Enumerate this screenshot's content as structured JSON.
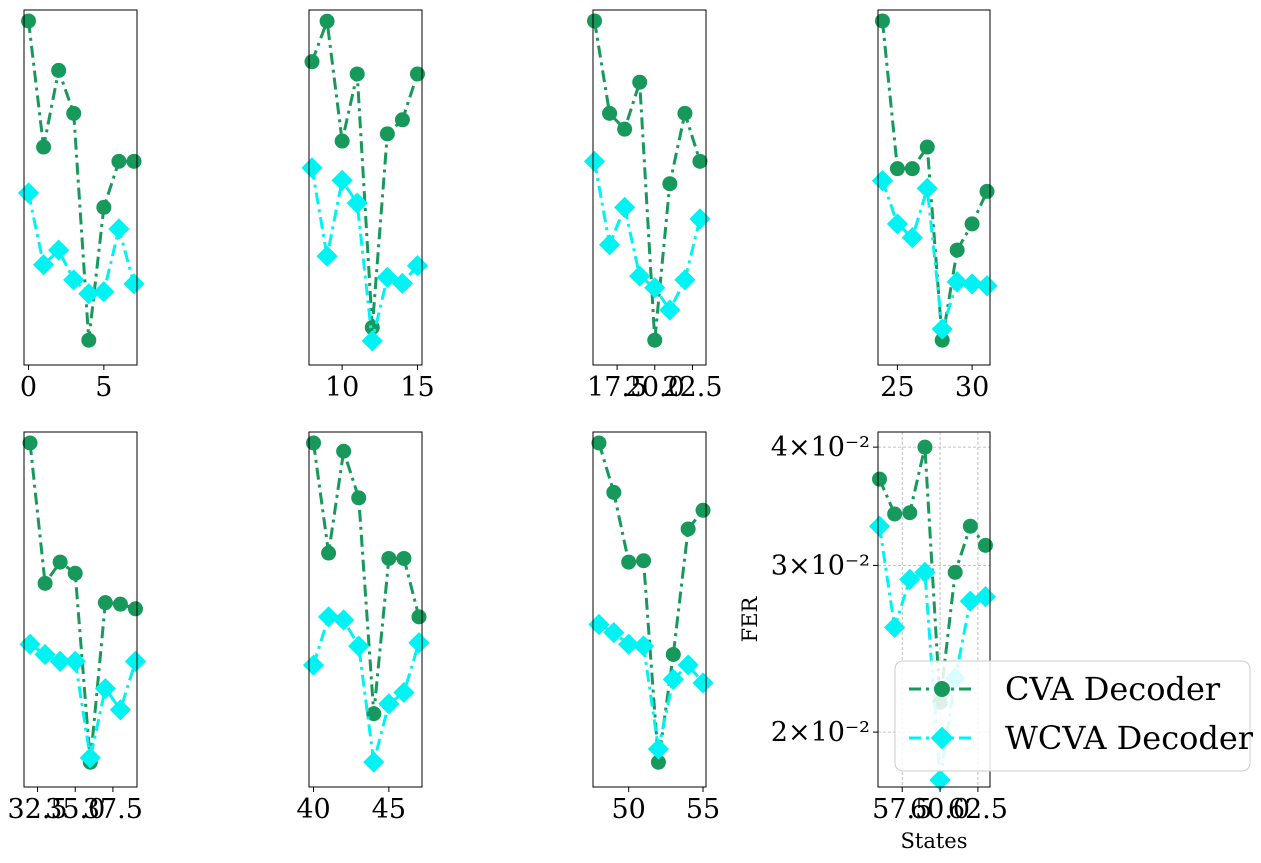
{
  "colors": {
    "cva": "#16995a",
    "wcva": "#00f3f3"
  },
  "legend": {
    "items": [
      "CVA Decoder",
      "WCVA Decoder"
    ],
    "placement": "lower-right"
  },
  "chart_data": [
    {
      "type": "line",
      "x": [
        0,
        1,
        2,
        3,
        4,
        5,
        6,
        7
      ],
      "xticks": [
        0,
        5
      ],
      "xtick_labels": [
        "0",
        "5"
      ],
      "xlim": [
        -0.3,
        7.2
      ],
      "series": [
        {
          "name": "CVA Decoder",
          "values": [
            0.04,
            0.0295,
            0.0355,
            0.032,
            0.0185,
            0.0255,
            0.0285,
            0.0285
          ]
        },
        {
          "name": "WCVA Decoder",
          "values": [
            0.0264,
            0.0222,
            0.023,
            0.0214,
            0.0207,
            0.0208,
            0.0242,
            0.0212
          ]
        }
      ]
    },
    {
      "type": "line",
      "x": [
        8,
        9,
        10,
        11,
        12,
        13,
        14,
        15
      ],
      "xticks": [
        10,
        15
      ],
      "xtick_labels": [
        "10",
        "15"
      ],
      "xlim": [
        7.8,
        15.3
      ],
      "series": [
        {
          "name": "CVA Decoder",
          "values": [
            0.0365,
            0.04,
            0.0305,
            0.0355,
            0.02,
            0.031,
            0.032,
            0.0355
          ]
        },
        {
          "name": "WCVA Decoder",
          "values": [
            0.0287,
            0.0235,
            0.0279,
            0.0265,
            0.0194,
            0.0224,
            0.0221,
            0.023
          ]
        }
      ]
    },
    {
      "type": "line",
      "x": [
        16,
        17,
        18,
        19,
        20,
        21,
        22,
        23
      ],
      "xticks": [
        17.5,
        20,
        22.5
      ],
      "xtick_labels": [
        "17.5",
        "20.0",
        "22.5"
      ],
      "xlim": [
        15.9,
        23.4
      ],
      "series": [
        {
          "name": "CVA Decoder",
          "values": [
            0.04,
            0.032,
            0.0308,
            0.0345,
            0.0185,
            0.027,
            0.032,
            0.0285
          ]
        },
        {
          "name": "WCVA Decoder",
          "values": [
            0.0285,
            0.0233,
            0.0255,
            0.0216,
            0.021,
            0.0199,
            0.0214,
            0.0248
          ]
        }
      ]
    },
    {
      "type": "line",
      "x": [
        24,
        25,
        26,
        27,
        28,
        29,
        30,
        31
      ],
      "xticks": [
        25,
        30
      ],
      "xtick_labels": [
        "25",
        "30"
      ],
      "xlim": [
        23.7,
        31.2
      ],
      "series": [
        {
          "name": "CVA Decoder",
          "values": [
            0.04,
            0.028,
            0.028,
            0.0295,
            0.0185,
            0.023,
            0.0245,
            0.0265
          ]
        },
        {
          "name": "WCVA Decoder",
          "values": [
            0.0272,
            0.0245,
            0.0237,
            0.0267,
            0.019,
            0.0213,
            0.0212,
            0.0211
          ]
        }
      ]
    },
    {
      "type": "line",
      "x": [
        32,
        33,
        34,
        35,
        36,
        37,
        38,
        39
      ],
      "xticks": [
        32.5,
        35,
        37.5
      ],
      "xtick_labels": [
        "32.5",
        "35.0",
        "37.5"
      ],
      "xlim": [
        31.6,
        39.1
      ],
      "series": [
        {
          "name": "CVA Decoder",
          "values": [
            0.04,
            0.0285,
            0.03,
            0.0292,
            0.0185,
            0.0272,
            0.0271,
            0.0268
          ]
        },
        {
          "name": "WCVA Decoder",
          "values": [
            0.0246,
            0.024,
            0.0236,
            0.0236,
            0.0187,
            0.0221,
            0.021,
            0.0236
          ]
        }
      ]
    },
    {
      "type": "line",
      "x": [
        40,
        41,
        42,
        43,
        44,
        45,
        46,
        47
      ],
      "xticks": [
        40,
        45
      ],
      "xtick_labels": [
        "40",
        "45"
      ],
      "xlim": [
        39.7,
        47.2
      ],
      "series": [
        {
          "name": "CVA Decoder",
          "values": [
            0.04,
            0.0306,
            0.0392,
            0.035,
            0.0207,
            0.0302,
            0.0302,
            0.0262
          ]
        },
        {
          "name": "WCVA Decoder",
          "values": [
            0.0233,
            0.0262,
            0.026,
            0.0244,
            0.0184,
            0.0212,
            0.0218,
            0.0246
          ]
        }
      ]
    },
    {
      "type": "line",
      "x": [
        48,
        49,
        50,
        51,
        52,
        53,
        54,
        55
      ],
      "xticks": [
        50,
        55
      ],
      "xtick_labels": [
        "50",
        "55"
      ],
      "xlim": [
        47.6,
        55.2
      ],
      "series": [
        {
          "name": "CVA Decoder",
          "values": [
            0.04,
            0.0355,
            0.03,
            0.0301,
            0.0185,
            0.024,
            0.0325,
            0.034
          ]
        },
        {
          "name": "WCVA Decoder",
          "values": [
            0.0258,
            0.0253,
            0.0246,
            0.0245,
            0.0191,
            0.0226,
            0.0234,
            0.0224
          ]
        }
      ]
    },
    {
      "type": "line",
      "x": [
        56,
        57,
        58,
        59,
        60,
        61,
        62,
        63
      ],
      "xticks": [
        57.5,
        60,
        62.5
      ],
      "xtick_labels": [
        "57.5",
        "60.0",
        "62.5"
      ],
      "xlim": [
        55.9,
        63.3
      ],
      "yscale": "log",
      "ylim": [
        0.0175,
        0.0415
      ],
      "grid": true,
      "yticks": [
        0.02,
        0.03,
        0.04
      ],
      "ytick_labels": [
        "2×10⁻²",
        "3×10⁻²",
        "4×10⁻²"
      ],
      "xlabel": "States",
      "ylabel": "FER",
      "series": [
        {
          "name": "CVA Decoder",
          "values": [
            0.037,
            0.034,
            0.0341,
            0.04,
            0.0215,
            0.0295,
            0.033,
            0.0315
          ]
        },
        {
          "name": "WCVA Decoder",
          "values": [
            0.033,
            0.0258,
            0.029,
            0.0295,
            0.0178,
            0.0228,
            0.0275,
            0.0278
          ]
        }
      ]
    }
  ]
}
